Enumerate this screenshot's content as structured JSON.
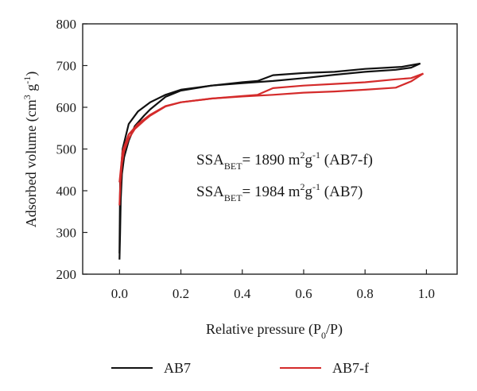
{
  "chart_data": {
    "type": "line",
    "title": "",
    "xlabel": {
      "main": "Relative pressure (P",
      "sub": "0",
      "rest": "/P)"
    },
    "ylabel": {
      "a": "Adsorbed volume (cm",
      "sup1": "3",
      "b": " g",
      "sup2": "-1",
      "c": ")"
    },
    "xlim": [
      -0.12,
      1.1
    ],
    "ylim": [
      200,
      800
    ],
    "x_ticks": [
      0.0,
      0.2,
      0.4,
      0.6,
      0.8,
      1.0
    ],
    "x_tick_labels": [
      "0.0",
      "0.2",
      "0.4",
      "0.6",
      "0.8",
      "1.0"
    ],
    "y_ticks": [
      200,
      300,
      400,
      500,
      600,
      700,
      800
    ],
    "y_tick_labels": [
      "200",
      "300",
      "400",
      "500",
      "600",
      "700",
      "800"
    ],
    "grid": false,
    "legend_position": "bottom",
    "series": [
      {
        "name": "AB7",
        "color": "#111111",
        "adsorption": [
          [
            0.0,
            235
          ],
          [
            0.002,
            300
          ],
          [
            0.004,
            380
          ],
          [
            0.008,
            440
          ],
          [
            0.015,
            480
          ],
          [
            0.03,
            520
          ],
          [
            0.05,
            555
          ],
          [
            0.08,
            580
          ],
          [
            0.1,
            595
          ],
          [
            0.15,
            625
          ],
          [
            0.2,
            640
          ],
          [
            0.3,
            652
          ],
          [
            0.4,
            658
          ],
          [
            0.5,
            663
          ],
          [
            0.6,
            670
          ],
          [
            0.7,
            678
          ],
          [
            0.8,
            685
          ],
          [
            0.9,
            690
          ],
          [
            0.95,
            695
          ],
          [
            0.98,
            705
          ]
        ],
        "desorption": [
          [
            0.98,
            705
          ],
          [
            0.92,
            697
          ],
          [
            0.8,
            692
          ],
          [
            0.7,
            685
          ],
          [
            0.6,
            682
          ],
          [
            0.5,
            677
          ],
          [
            0.45,
            663
          ],
          [
            0.4,
            660
          ],
          [
            0.3,
            652
          ],
          [
            0.2,
            642
          ],
          [
            0.15,
            630
          ],
          [
            0.1,
            612
          ],
          [
            0.06,
            590
          ],
          [
            0.03,
            560
          ],
          [
            0.01,
            500
          ],
          [
            0.002,
            420
          ],
          [
            0.0,
            250
          ]
        ]
      },
      {
        "name": "AB7-f",
        "color": "#d42b2b",
        "adsorption": [
          [
            0.0,
            365
          ],
          [
            0.003,
            420
          ],
          [
            0.008,
            465
          ],
          [
            0.015,
            495
          ],
          [
            0.03,
            525
          ],
          [
            0.05,
            548
          ],
          [
            0.08,
            568
          ],
          [
            0.1,
            580
          ],
          [
            0.15,
            602
          ],
          [
            0.2,
            612
          ],
          [
            0.3,
            621
          ],
          [
            0.4,
            626
          ],
          [
            0.5,
            630
          ],
          [
            0.6,
            635
          ],
          [
            0.7,
            638
          ],
          [
            0.8,
            642
          ],
          [
            0.9,
            647
          ],
          [
            0.95,
            662
          ],
          [
            0.99,
            681
          ]
        ],
        "desorption": [
          [
            0.99,
            681
          ],
          [
            0.95,
            670
          ],
          [
            0.9,
            667
          ],
          [
            0.8,
            660
          ],
          [
            0.7,
            656
          ],
          [
            0.6,
            652
          ],
          [
            0.5,
            646
          ],
          [
            0.45,
            630
          ],
          [
            0.4,
            627
          ],
          [
            0.3,
            621
          ],
          [
            0.2,
            612
          ],
          [
            0.15,
            603
          ],
          [
            0.1,
            582
          ],
          [
            0.06,
            560
          ],
          [
            0.03,
            535
          ],
          [
            0.01,
            495
          ],
          [
            0.0,
            420
          ]
        ]
      }
    ],
    "annotations": [
      {
        "pre": "SSA",
        "sub": "BET",
        "mid": "= 1890 m",
        "sup1": "2",
        "mid2": "g",
        "sup2": "-1",
        "post": " (AB7-f)"
      },
      {
        "pre": "SSA",
        "sub": "BET",
        "mid": "= 1984 m",
        "sup1": "2",
        "mid2": "g",
        "sup2": "-1",
        "post": " (AB7)"
      }
    ]
  }
}
